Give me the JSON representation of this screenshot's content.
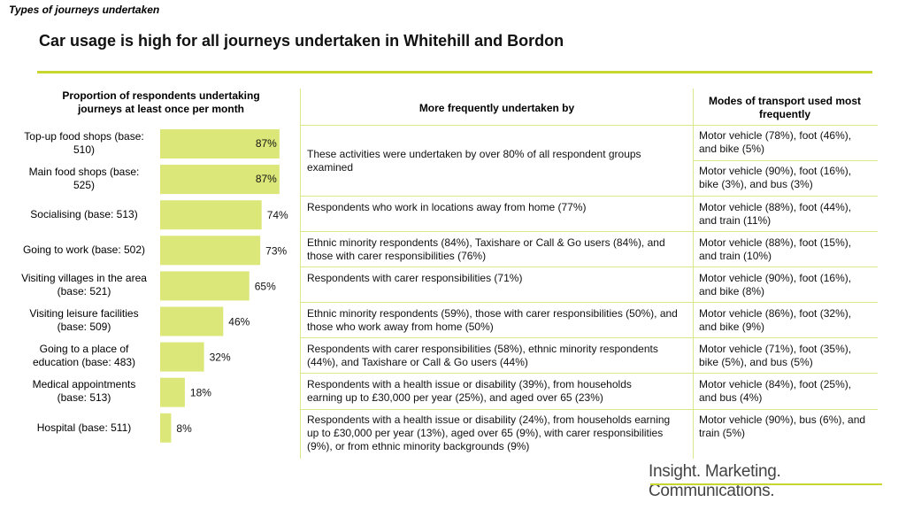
{
  "section_label": "Types of journeys undertaken",
  "title": "Car usage is high for all journeys undertaken in Whitehill and Bordon",
  "headers": {
    "proportion": "Proportion of respondents undertaking journeys at least once per month",
    "frequent": "More frequently undertaken by",
    "modes": "Modes of transport used most frequently"
  },
  "colors": {
    "bar": "#dbe779",
    "accent": "#c7d630",
    "grid": "#d9e88a"
  },
  "chart_data": {
    "type": "bar",
    "orientation": "horizontal",
    "title": "Proportion of respondents undertaking journeys at least once per month",
    "categories": [
      "Top-up food shops (base: 510)",
      "Main food shops (base: 525)",
      "Socialising (base: 513)",
      "Going to work (base: 502)",
      "Visiting villages in the area (base: 521)",
      "Visiting leisure facilities (base: 509)",
      "Going to a place of education (base: 483)",
      "Medical appointments (base: 513)",
      "Hospital (base: 511)"
    ],
    "values": [
      87,
      87,
      74,
      73,
      65,
      46,
      32,
      18,
      8
    ],
    "value_labels": [
      "87%",
      "87%",
      "74%",
      "73%",
      "65%",
      "46%",
      "32%",
      "18%",
      "8%"
    ],
    "xlim": [
      0,
      100
    ],
    "unit": "%"
  },
  "frequent_by": [
    "These activities were undertaken by over 80% of all respondent groups examined",
    "Respondents who work in locations away from home (77%)",
    "Ethnic minority respondents (84%), Taxishare or Call & Go users (84%), and those with carer responsibilities (76%)",
    "Respondents with carer responsibilities (71%)",
    "Ethnic minority respondents (59%), those with carer responsibilities (50%), and those who work away from home (50%)",
    "Respondents with carer responsibilities (58%), ethnic minority respondents (44%), and Taxishare or Call & Go users (44%)",
    "Respondents with a health issue or disability (39%), from households earning up to £30,000 per year (25%), and aged over 65 (23%)",
    "Respondents with a health issue or disability (24%), from households earning up to £30,000 per year (13%), aged over 65 (9%), with carer responsibilities (9%), or from ethnic minority backgrounds (9%)"
  ],
  "modes": [
    "Motor vehicle (78%), foot (46%), and bike (5%)",
    "Motor vehicle (90%), foot (16%), bike (3%), and bus (3%)",
    "Motor vehicle (88%), foot (44%), and train (11%)",
    "Motor vehicle (88%), foot (15%), and train (10%)",
    "Motor vehicle (90%), foot (16%), and bike (8%)",
    "Motor vehicle (86%), foot (32%), and bike (9%)",
    "Motor vehicle (71%), foot (35%), bike (5%), and bus (5%)",
    "Motor vehicle (84%), foot (25%), and bus (4%)",
    "Motor vehicle (90%), bus (6%), and train (5%)"
  ],
  "logo_text": "Insight. Marketing. Communications."
}
